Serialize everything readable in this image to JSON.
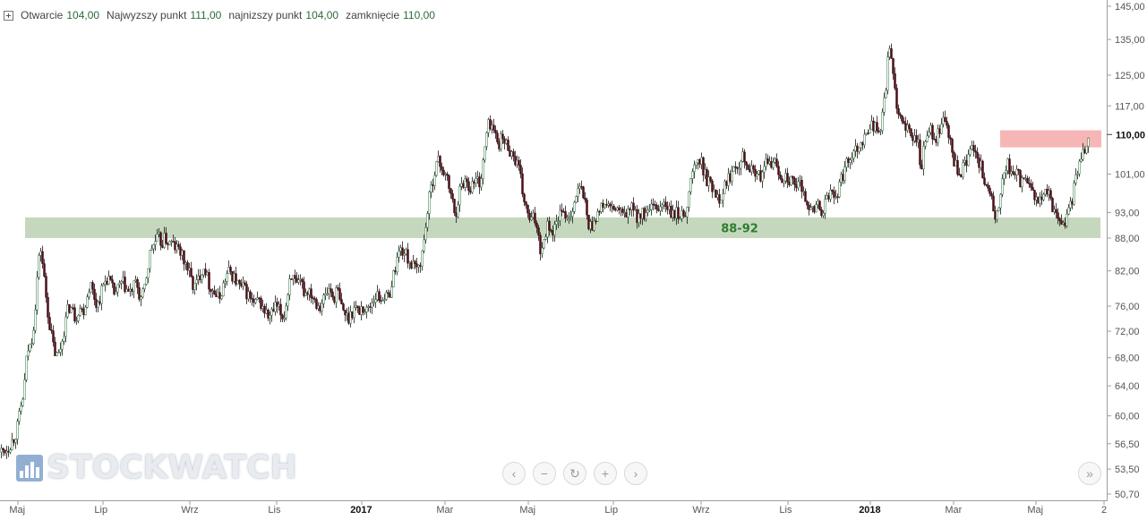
{
  "legend": {
    "open_label": "Otwarcie",
    "open_value": "104,00",
    "high_label": "Najwyzszy punkt",
    "high_value": "111,00",
    "low_label": "najnizszy punkt",
    "low_value": "104,00",
    "close_label": "zamknięcie",
    "close_value": "110,00"
  },
  "watermark": {
    "text": "STOCKWATCH"
  },
  "nav_buttons": [
    {
      "name": "scroll-left-button",
      "icon": "‹"
    },
    {
      "name": "zoom-out-button",
      "icon": "−"
    },
    {
      "name": "reset-button",
      "icon": "↻"
    },
    {
      "name": "zoom-in-button",
      "icon": "+"
    },
    {
      "name": "scroll-right-button",
      "icon": "›"
    }
  ],
  "go_to_end_button": {
    "icon": "»"
  },
  "chart_data": {
    "type": "candlestick",
    "y_axis": {
      "scale": "log",
      "ticks": [
        "145,00",
        "135,00",
        "125,00",
        "117,00",
        "110,00",
        "101,00",
        "93,00",
        "88,00",
        "82,00",
        "76,00",
        "72,00",
        "68,00",
        "64,00",
        "60,00",
        "56,50",
        "53,50",
        "50,70"
      ],
      "tick_values": [
        145,
        135,
        125,
        117,
        110,
        101,
        93,
        88,
        82,
        76,
        72,
        68,
        64,
        60,
        56.5,
        53.5,
        50.7
      ],
      "current_price": "110,00",
      "range": [
        50.0,
        148.0
      ]
    },
    "x_axis": {
      "ticks": [
        "Maj",
        "Lip",
        "Wrz",
        "Lis",
        "2017",
        "Mar",
        "Maj",
        "Lip",
        "Wrz",
        "Lis",
        "2018",
        "Mar",
        "Maj",
        "2"
      ],
      "bold_ticks": [
        "2017",
        "2018"
      ]
    },
    "support_zone": {
      "low": 88,
      "high": 92,
      "label": "88-92",
      "color": "#c5d8bd",
      "label_color": "#2e7d32"
    },
    "resistance_zone": {
      "low": 107,
      "high": 111,
      "color": "#f7b6b6"
    },
    "colors": {
      "up": "#ffffff",
      "down": "#4a0f18",
      "wick": "#1a1a1a",
      "up_border": "#2d6e3a"
    },
    "close_path": [
      [
        0,
        55.5
      ],
      [
        8,
        56.0
      ],
      [
        14,
        57.0
      ],
      [
        18,
        58
      ],
      [
        22,
        60.5
      ],
      [
        26,
        63
      ],
      [
        30,
        69
      ],
      [
        34,
        70
      ],
      [
        38,
        74
      ],
      [
        42,
        83
      ],
      [
        45,
        86
      ],
      [
        48,
        82
      ],
      [
        52,
        76
      ],
      [
        56,
        72
      ],
      [
        60,
        69
      ],
      [
        64,
        68
      ],
      [
        68,
        70
      ],
      [
        72,
        73
      ],
      [
        76,
        76
      ],
      [
        80,
        75.5
      ],
      [
        84,
        74
      ],
      [
        88,
        76
      ],
      [
        92,
        75
      ],
      [
        96,
        77
      ],
      [
        100,
        80
      ],
      [
        104,
        78
      ],
      [
        108,
        76
      ],
      [
        112,
        78
      ],
      [
        116,
        80
      ],
      [
        120,
        81
      ],
      [
        124,
        79
      ],
      [
        128,
        78
      ],
      [
        132,
        79
      ],
      [
        136,
        80
      ],
      [
        140,
        79
      ],
      [
        144,
        78
      ],
      [
        148,
        79
      ],
      [
        152,
        80
      ],
      [
        156,
        77
      ],
      [
        160,
        78
      ],
      [
        164,
        82
      ],
      [
        168,
        86
      ],
      [
        172,
        87
      ],
      [
        176,
        88
      ],
      [
        180,
        87
      ],
      [
        184,
        88
      ],
      [
        188,
        87
      ],
      [
        192,
        87
      ],
      [
        196,
        86
      ],
      [
        200,
        86
      ],
      [
        204,
        84
      ],
      [
        208,
        83
      ],
      [
        212,
        81
      ],
      [
        216,
        79
      ],
      [
        220,
        80
      ],
      [
        224,
        82
      ],
      [
        228,
        83
      ],
      [
        232,
        80
      ],
      [
        236,
        79
      ],
      [
        240,
        78
      ],
      [
        244,
        77
      ],
      [
        248,
        79
      ],
      [
        252,
        81
      ],
      [
        256,
        82
      ],
      [
        260,
        81
      ],
      [
        264,
        80
      ],
      [
        268,
        79
      ],
      [
        272,
        79
      ],
      [
        276,
        78
      ],
      [
        280,
        77
      ],
      [
        284,
        76
      ],
      [
        288,
        77
      ],
      [
        292,
        76
      ],
      [
        296,
        75
      ],
      [
        300,
        74
      ],
      [
        304,
        75
      ],
      [
        308,
        76
      ],
      [
        312,
        75
      ],
      [
        316,
        74
      ],
      [
        320,
        77
      ],
      [
        324,
        82
      ],
      [
        328,
        80
      ],
      [
        332,
        79
      ],
      [
        336,
        80
      ],
      [
        340,
        78
      ],
      [
        344,
        79
      ],
      [
        348,
        78
      ],
      [
        352,
        77
      ],
      [
        356,
        76
      ],
      [
        360,
        77
      ],
      [
        364,
        78
      ],
      [
        368,
        79
      ],
      [
        372,
        77
      ],
      [
        376,
        79
      ],
      [
        380,
        76
      ],
      [
        384,
        75
      ],
      [
        388,
        74
      ],
      [
        392,
        75
      ],
      [
        396,
        76
      ],
      [
        400,
        75
      ],
      [
        404,
        76
      ],
      [
        408,
        75
      ],
      [
        412,
        76
      ],
      [
        416,
        77
      ],
      [
        420,
        78
      ],
      [
        424,
        77
      ],
      [
        428,
        78
      ],
      [
        432,
        77
      ],
      [
        436,
        79
      ],
      [
        440,
        82
      ],
      [
        444,
        85
      ],
      [
        448,
        86
      ],
      [
        452,
        85
      ],
      [
        456,
        84
      ],
      [
        460,
        83
      ],
      [
        464,
        82
      ],
      [
        468,
        83
      ],
      [
        472,
        86
      ],
      [
        476,
        92
      ],
      [
        480,
        97
      ],
      [
        484,
        101
      ],
      [
        488,
        104
      ],
      [
        492,
        103
      ],
      [
        496,
        101
      ],
      [
        500,
        99
      ],
      [
        504,
        96
      ],
      [
        508,
        92
      ],
      [
        512,
        97
      ],
      [
        516,
        99
      ],
      [
        520,
        100
      ],
      [
        524,
        98
      ],
      [
        528,
        99
      ],
      [
        532,
        100
      ],
      [
        536,
        99
      ],
      [
        540,
        105
      ],
      [
        544,
        112
      ],
      [
        548,
        113
      ],
      [
        552,
        110
      ],
      [
        556,
        108
      ],
      [
        560,
        109
      ],
      [
        564,
        108
      ],
      [
        568,
        107
      ],
      [
        572,
        105
      ],
      [
        576,
        104
      ],
      [
        580,
        101
      ],
      [
        584,
        96
      ],
      [
        588,
        93
      ],
      [
        592,
        91
      ],
      [
        596,
        92
      ],
      [
        600,
        90
      ],
      [
        604,
        85
      ],
      [
        608,
        89
      ],
      [
        612,
        91
      ],
      [
        616,
        89
      ],
      [
        620,
        90
      ],
      [
        624,
        93
      ],
      [
        628,
        92
      ],
      [
        632,
        93
      ],
      [
        636,
        92
      ],
      [
        640,
        95
      ],
      [
        644,
        97
      ],
      [
        648,
        98
      ],
      [
        652,
        96
      ],
      [
        656,
        91
      ],
      [
        660,
        90
      ],
      [
        664,
        92
      ],
      [
        668,
        93
      ],
      [
        672,
        94
      ],
      [
        676,
        95
      ],
      [
        680,
        94
      ],
      [
        684,
        93
      ],
      [
        688,
        94
      ],
      [
        692,
        93
      ],
      [
        696,
        92
      ],
      [
        700,
        93
      ],
      [
        704,
        94
      ],
      [
        708,
        93
      ],
      [
        712,
        92
      ],
      [
        716,
        93
      ],
      [
        720,
        92
      ],
      [
        724,
        93
      ],
      [
        728,
        94
      ],
      [
        732,
        93
      ],
      [
        736,
        94
      ],
      [
        740,
        95
      ],
      [
        744,
        94
      ],
      [
        748,
        93
      ],
      [
        752,
        92
      ],
      [
        756,
        93
      ],
      [
        760,
        92
      ],
      [
        764,
        93
      ],
      [
        768,
        95
      ],
      [
        772,
        101
      ],
      [
        776,
        103
      ],
      [
        780,
        104
      ],
      [
        784,
        103
      ],
      [
        788,
        100
      ],
      [
        792,
        99
      ],
      [
        796,
        98
      ],
      [
        800,
        97
      ],
      [
        804,
        96
      ],
      [
        808,
        98
      ],
      [
        812,
        100
      ],
      [
        816,
        101
      ],
      [
        820,
        104
      ],
      [
        824,
        103
      ],
      [
        828,
        106
      ],
      [
        832,
        104
      ],
      [
        836,
        103
      ],
      [
        840,
        101
      ],
      [
        844,
        102
      ],
      [
        848,
        100
      ],
      [
        852,
        101
      ],
      [
        856,
        104
      ],
      [
        860,
        103
      ],
      [
        864,
        104
      ],
      [
        868,
        102
      ],
      [
        872,
        100
      ],
      [
        876,
        101
      ],
      [
        880,
        100
      ],
      [
        884,
        99
      ],
      [
        888,
        98
      ],
      [
        892,
        99
      ],
      [
        896,
        97
      ],
      [
        900,
        96
      ],
      [
        904,
        94
      ],
      [
        908,
        93
      ],
      [
        912,
        95
      ],
      [
        916,
        93
      ],
      [
        920,
        94
      ],
      [
        924,
        96
      ],
      [
        928,
        97
      ],
      [
        932,
        96
      ],
      [
        936,
        98
      ],
      [
        940,
        100
      ],
      [
        944,
        103
      ],
      [
        948,
        105
      ],
      [
        952,
        106
      ],
      [
        956,
        107
      ],
      [
        960,
        108
      ],
      [
        964,
        109
      ],
      [
        968,
        110
      ],
      [
        972,
        113
      ],
      [
        976,
        112
      ],
      [
        980,
        110
      ],
      [
        984,
        113
      ],
      [
        988,
        119
      ],
      [
        992,
        134
      ],
      [
        996,
        126
      ],
      [
        1000,
        119
      ],
      [
        1004,
        115
      ],
      [
        1008,
        112
      ],
      [
        1012,
        111
      ],
      [
        1016,
        110
      ],
      [
        1020,
        109
      ],
      [
        1024,
        110
      ],
      [
        1028,
        101
      ],
      [
        1032,
        108
      ],
      [
        1036,
        110
      ],
      [
        1040,
        111
      ],
      [
        1044,
        109
      ],
      [
        1048,
        110
      ],
      [
        1052,
        114
      ],
      [
        1056,
        112
      ],
      [
        1060,
        109
      ],
      [
        1064,
        104
      ],
      [
        1068,
        102
      ],
      [
        1072,
        100
      ],
      [
        1076,
        103
      ],
      [
        1080,
        104
      ],
      [
        1084,
        106
      ],
      [
        1088,
        108
      ],
      [
        1092,
        104
      ],
      [
        1096,
        102
      ],
      [
        1100,
        99
      ],
      [
        1104,
        98
      ],
      [
        1108,
        94
      ],
      [
        1112,
        92
      ],
      [
        1116,
        95
      ],
      [
        1120,
        100
      ],
      [
        1124,
        104
      ],
      [
        1128,
        101
      ],
      [
        1132,
        100
      ],
      [
        1136,
        101
      ],
      [
        1140,
        99
      ],
      [
        1144,
        100
      ],
      [
        1148,
        98
      ],
      [
        1152,
        97
      ],
      [
        1156,
        96
      ],
      [
        1160,
        95
      ],
      [
        1164,
        96
      ],
      [
        1168,
        97
      ],
      [
        1172,
        96
      ],
      [
        1176,
        94
      ],
      [
        1180,
        93
      ],
      [
        1184,
        91
      ],
      [
        1188,
        91
      ],
      [
        1192,
        92
      ],
      [
        1196,
        95
      ],
      [
        1200,
        99
      ],
      [
        1204,
        103
      ],
      [
        1208,
        106
      ],
      [
        1212,
        107
      ],
      [
        1216,
        110
      ]
    ]
  }
}
